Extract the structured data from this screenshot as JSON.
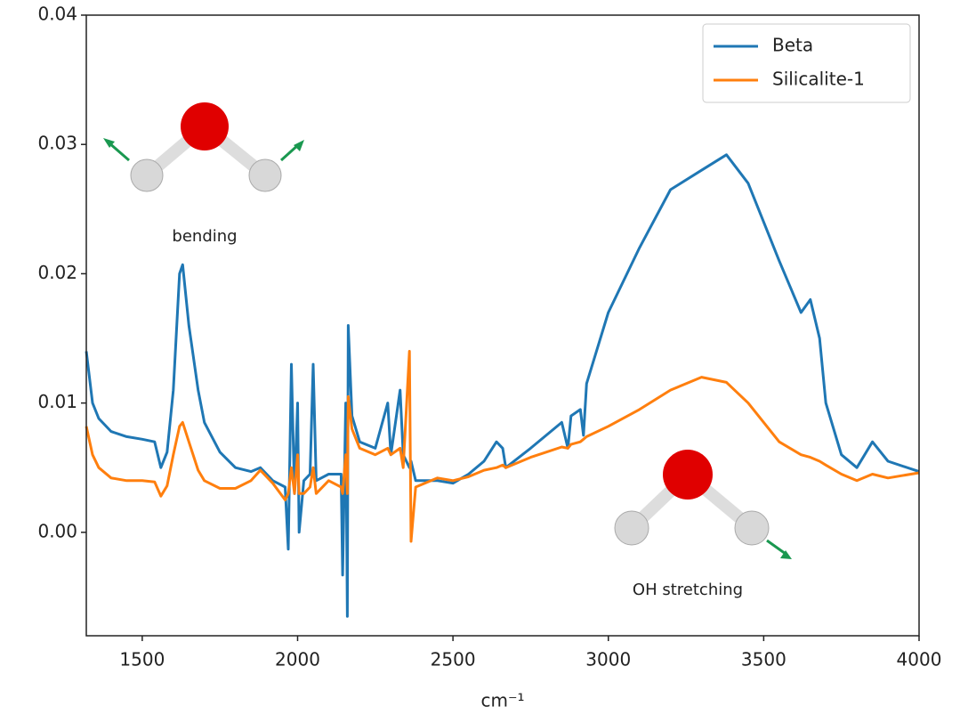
{
  "chart_data": {
    "type": "line",
    "xlabel": "cm⁻¹",
    "annotations": [
      "bending",
      "OH stretching"
    ],
    "xlim": [
      1320,
      4000
    ],
    "xticks": [
      1500,
      2000,
      2500,
      3000,
      3500,
      4000
    ],
    "ylim": [
      -0.008,
      0.04
    ],
    "yticks": [
      {
        "value": 0,
        "label": "0.00"
      },
      0.01,
      0.02,
      0.03,
      0.04
    ],
    "legend": "upper right",
    "x": [
      1320,
      1340,
      1360,
      1400,
      1450,
      1500,
      1540,
      1560,
      1580,
      1600,
      1620,
      1630,
      1650,
      1680,
      1700,
      1750,
      1800,
      1850,
      1880,
      1920,
      1960,
      1970,
      1980,
      1990,
      2000,
      2005,
      2020,
      2040,
      2050,
      2060,
      2100,
      2140,
      2145,
      2155,
      2160,
      2163,
      2175,
      2200,
      2250,
      2290,
      2300,
      2330,
      2340,
      2360,
      2365,
      2380,
      2450,
      2500,
      2550,
      2600,
      2640,
      2660,
      2670,
      2750,
      2850,
      2870,
      2880,
      2910,
      2920,
      2930,
      3000,
      3100,
      3200,
      3300,
      3380,
      3450,
      3550,
      3620,
      3650,
      3680,
      3700,
      3750,
      3800,
      3850,
      3900,
      4000
    ],
    "series": [
      {
        "name": "Beta",
        "color": "#1f77b4",
        "values": [
          0.014,
          0.01,
          0.0088,
          0.0078,
          0.0074,
          0.0072,
          0.007,
          0.005,
          0.0062,
          0.011,
          0.02,
          0.0207,
          0.016,
          0.011,
          0.0085,
          0.0062,
          0.005,
          0.0047,
          0.005,
          0.004,
          0.0035,
          -0.0013,
          0.013,
          0.003,
          0.01,
          0.0,
          0.004,
          0.0045,
          0.013,
          0.004,
          0.0045,
          0.0045,
          -0.0033,
          0.01,
          -0.0065,
          0.016,
          0.009,
          0.007,
          0.0065,
          0.01,
          0.006,
          0.011,
          0.006,
          0.005,
          0.0055,
          0.004,
          0.004,
          0.0038,
          0.0045,
          0.0055,
          0.007,
          0.0065,
          0.005,
          0.0065,
          0.0085,
          0.0065,
          0.009,
          0.0095,
          0.0075,
          0.0115,
          0.017,
          0.022,
          0.0265,
          0.028,
          0.0292,
          0.027,
          0.021,
          0.017,
          0.018,
          0.015,
          0.01,
          0.006,
          0.005,
          0.007,
          0.0055,
          0.0047
        ]
      },
      {
        "name": "Silicalite-1",
        "color": "#ff7f0e",
        "values": [
          0.0082,
          0.006,
          0.005,
          0.0042,
          0.004,
          0.004,
          0.0039,
          0.0028,
          0.0036,
          0.006,
          0.0082,
          0.0085,
          0.007,
          0.0048,
          0.004,
          0.0034,
          0.0034,
          0.004,
          0.0048,
          0.0038,
          0.0025,
          0.003,
          0.005,
          0.003,
          0.006,
          0.003,
          0.003,
          0.0035,
          0.005,
          0.003,
          0.004,
          0.0035,
          0.003,
          0.006,
          0.003,
          0.0105,
          0.008,
          0.0065,
          0.006,
          0.0065,
          0.006,
          0.0065,
          0.005,
          0.014,
          -0.0007,
          0.0035,
          0.0042,
          0.004,
          0.0043,
          0.0048,
          0.005,
          0.0052,
          0.005,
          0.0058,
          0.0066,
          0.0065,
          0.0068,
          0.007,
          0.0072,
          0.0074,
          0.0082,
          0.0095,
          0.011,
          0.012,
          0.0116,
          0.01,
          0.007,
          0.006,
          0.0058,
          0.0055,
          0.0052,
          0.0045,
          0.004,
          0.0045,
          0.0042,
          0.0046
        ]
      }
    ]
  }
}
